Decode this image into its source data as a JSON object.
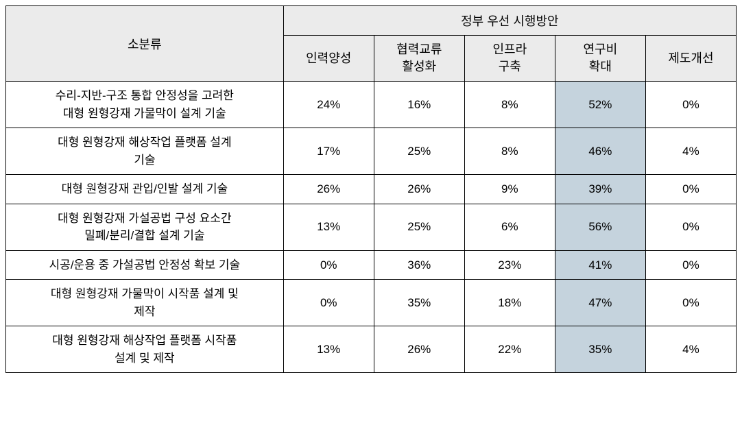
{
  "table": {
    "header_bg": "#ebebeb",
    "highlight_bg": "#c5d3dd",
    "cell_bg": "#ffffff",
    "border_color": "#000000",
    "header_fontsize": 18,
    "cell_fontsize": 17,
    "category_header": "소분류",
    "group_header": "정부 우선 시행방안",
    "columns": [
      "인력양성",
      "협력교류\n활성화",
      "인프라\n구축",
      "연구비\n확대",
      "제도개선"
    ],
    "highlight_col_index": 3,
    "rows": [
      {
        "category": "수리-지반-구조 통합 안정성을 고려한\n대형 원형강재 가물막이 설계 기술",
        "values": [
          "24%",
          "16%",
          "8%",
          "52%",
          "0%"
        ]
      },
      {
        "category": "대형 원형강재 해상작업 플랫폼 설계\n기술",
        "values": [
          "17%",
          "25%",
          "8%",
          "46%",
          "4%"
        ]
      },
      {
        "category": "대형 원형강재 관입/인발 설계 기술",
        "values": [
          "26%",
          "26%",
          "9%",
          "39%",
          "0%"
        ]
      },
      {
        "category": "대형 원형강재 가설공법 구성 요소간\n밀폐/분리/결합 설계 기술",
        "values": [
          "13%",
          "25%",
          "6%",
          "56%",
          "0%"
        ]
      },
      {
        "category": "시공/운용 중 가설공법 안정성 확보 기술",
        "values": [
          "0%",
          "36%",
          "23%",
          "41%",
          "0%"
        ]
      },
      {
        "category": "대형 원형강재 가물막이 시작품 설계 및\n제작",
        "values": [
          "0%",
          "35%",
          "18%",
          "47%",
          "0%"
        ]
      },
      {
        "category": "대형 원형강재 해상작업 플랫폼 시작품\n설계 및 제작",
        "values": [
          "13%",
          "26%",
          "22%",
          "35%",
          "4%"
        ]
      }
    ]
  }
}
